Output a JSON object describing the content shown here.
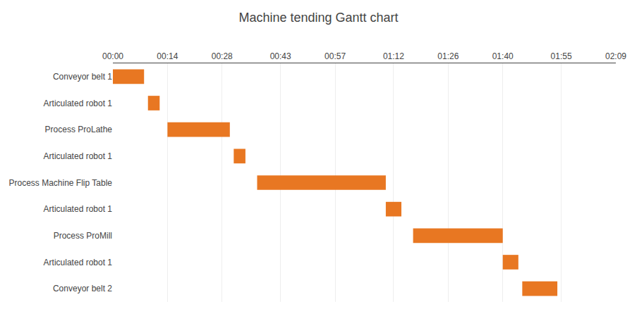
{
  "chart_data": {
    "type": "gantt",
    "title": "Machine tending Gantt chart",
    "orientation": "horizontal",
    "categories": [
      "Conveyor belt 1",
      "Articulated robot 1",
      "Process ProLathe",
      "Articulated robot 1",
      "Process Machine Flip Table",
      "Articulated robot 1",
      "Process ProMill",
      "Articulated robot 1",
      "Conveyor belt 2"
    ],
    "start": [
      0,
      9,
      14,
      31,
      37,
      70,
      77,
      100,
      105
    ],
    "end": [
      8,
      12,
      30,
      34,
      70,
      74,
      100,
      104,
      114
    ],
    "color": "#e87722",
    "xlim": [
      0,
      129
    ],
    "xticks": [
      {
        "value": 0,
        "label": "00:00"
      },
      {
        "value": 14,
        "label": "00:14"
      },
      {
        "value": 28,
        "label": "00:28"
      },
      {
        "value": 43,
        "label": "00:43"
      },
      {
        "value": 57,
        "label": "00:57"
      },
      {
        "value": 72,
        "label": "01:12"
      },
      {
        "value": 86,
        "label": "01:26"
      },
      {
        "value": 100,
        "label": "01:40"
      },
      {
        "value": 115,
        "label": "01:55"
      },
      {
        "value": 129,
        "label": "02:09"
      }
    ],
    "grid": true
  }
}
